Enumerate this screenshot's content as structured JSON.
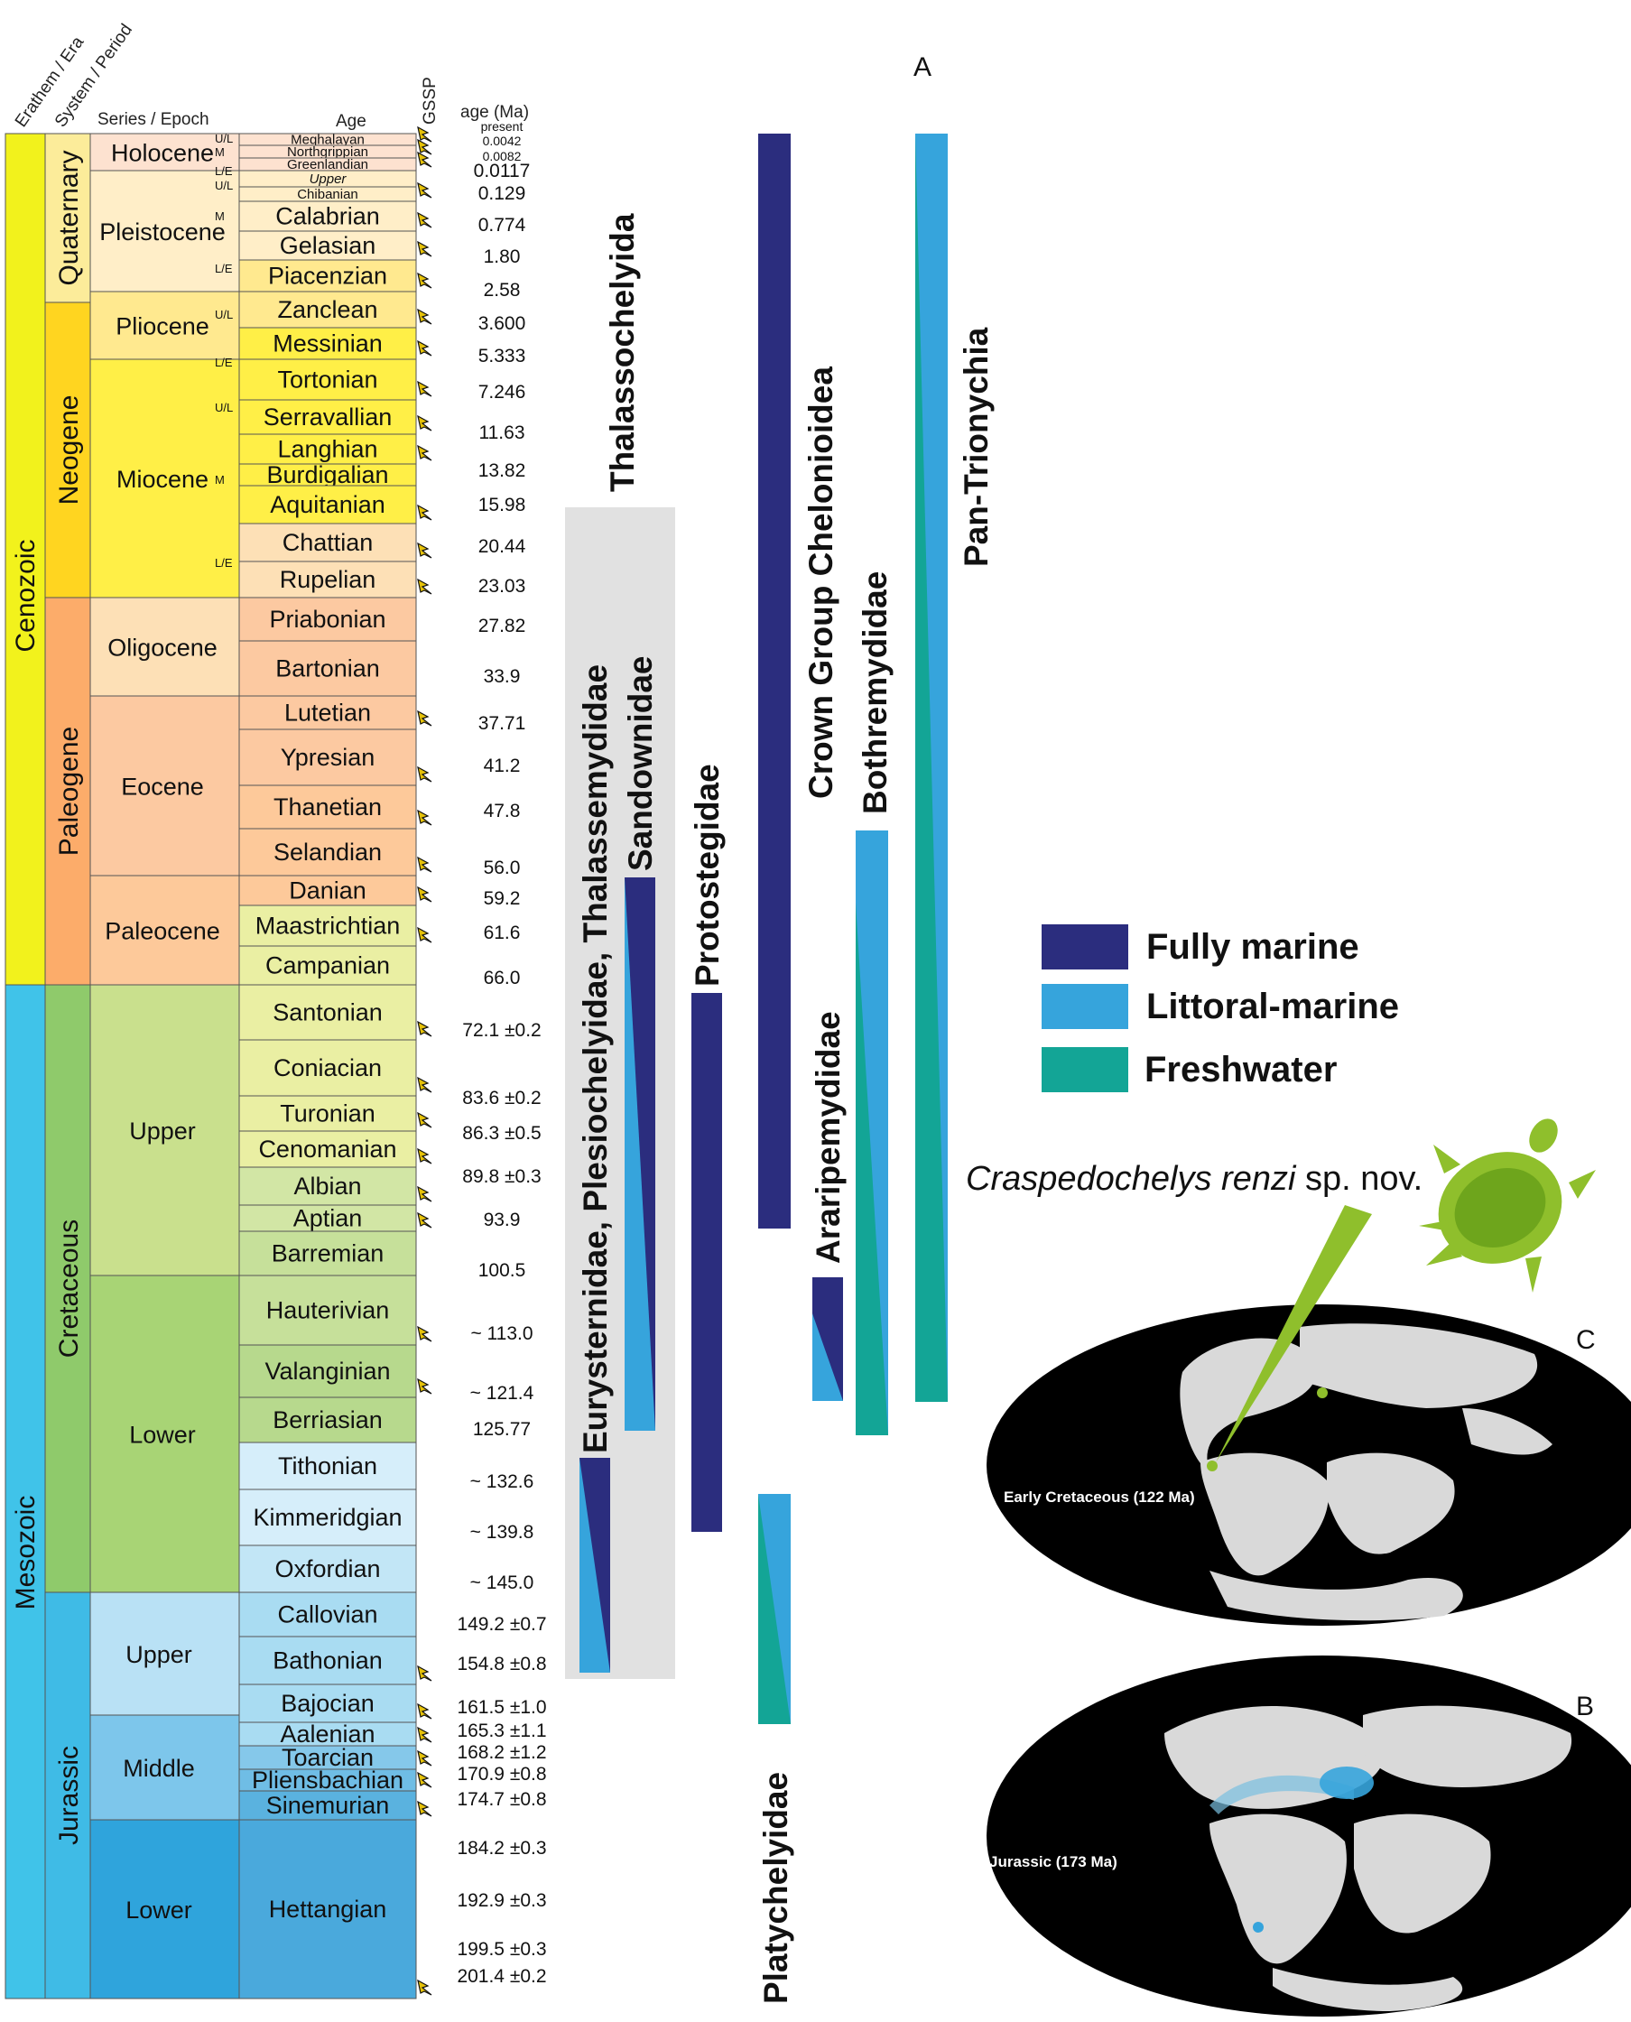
{
  "headers": {
    "erathem": "Erathem / Era",
    "system": "System / Period",
    "series": "Series / Epoch",
    "age": "Age",
    "gssp": "GSSP",
    "age_ma": "age (Ma)"
  },
  "eras": [
    "Cenozoic",
    "Mesozoic"
  ],
  "periods": [
    "Quaternary",
    "Neogene",
    "Paleogene",
    "Cretaceous",
    "Jurassic"
  ],
  "epochs": [
    "Holocene",
    "Pleistocene",
    "Pliocene",
    "Miocene",
    "Oligocene",
    "Eocene",
    "Paleocene",
    "Upper",
    "Lower",
    "Upper",
    "Middle",
    "Lower"
  ],
  "subdivisions": [
    "U/L",
    "M",
    "L/E",
    "U/L",
    "M",
    "L/E",
    "U/L",
    "L/E",
    "U/L",
    "M",
    "L/E"
  ],
  "ages": [
    "Meghalayan",
    "Northgrippian",
    "Greenlandian",
    "Upper",
    "Chibanian",
    "Calabrian",
    "Gelasian",
    "Piacenzian",
    "Zanclean",
    "Messinian",
    "Tortonian",
    "Serravallian",
    "Langhian",
    "Burdigalian",
    "Aquitanian",
    "Chattian",
    "Rupelian",
    "Priabonian",
    "Bartonian",
    "Lutetian",
    "Ypresian",
    "Thanetian",
    "Selandian",
    "Danian",
    "Maastrichtian",
    "Campanian",
    "Santonian",
    "Coniacian",
    "Turonian",
    "Cenomanian",
    "Albian",
    "Aptian",
    "Barremian",
    "Hauterivian",
    "Valanginian",
    "Berriasian",
    "Tithonian",
    "Kimmeridgian",
    "Oxfordian",
    "Callovian",
    "Bathonian",
    "Bajocian",
    "Aalenian",
    "Toarcian",
    "Pliensbachian",
    "Sinemurian",
    "Hettangian"
  ],
  "boundaries_ma": [
    "present",
    "0.0042",
    "0.0082",
    "0.0117",
    "0.129",
    "0.774",
    "1.80",
    "2.58",
    "3.600",
    "5.333",
    "7.246",
    "11.63",
    "13.82",
    "15.98",
    "20.44",
    "23.03",
    "27.82",
    "33.9",
    "37.71",
    "41.2",
    "47.8",
    "56.0",
    "59.2",
    "61.6",
    "66.0",
    "72.1 ±0.2",
    "83.6 ±0.2",
    "86.3 ±0.5",
    "89.8 ±0.3",
    "93.9",
    "100.5",
    "~ 113.0",
    "~ 121.4",
    "125.77",
    "~ 132.6",
    "~ 139.8",
    "~ 145.0",
    "149.2 ±0.7",
    "154.8 ±0.8",
    "161.5 ±1.0",
    "165.3 ±1.1",
    "168.2 ±1.2",
    "170.9 ±0.8",
    "174.7 ±0.8",
    "184.2 ±0.3",
    "192.9 ±0.3",
    "199.5 ±0.3",
    "201.4 ±0.2"
  ],
  "clades": [
    {
      "name": "Thalassochelyida",
      "habitat": "fully-marine"
    },
    {
      "name": "Eurysternidae, Plesiochelyidae, Thalassemydidae",
      "habitat": "littoral-to-marine"
    },
    {
      "name": "Sandownidae",
      "habitat": "marine-to-littoral"
    },
    {
      "name": "Protostegidae",
      "habitat": "fully-marine"
    },
    {
      "name": "Platychelyidae",
      "habitat": "littoral-to-freshwater"
    },
    {
      "name": "Crown Group Chelonioidea",
      "habitat": "fully-marine"
    },
    {
      "name": "Araripemydidae",
      "habitat": "littoral-to-marine"
    },
    {
      "name": "Bothremydidae",
      "habitat": "littoral-to-freshwater"
    },
    {
      "name": "Pan-Trionychia",
      "habitat": "littoral-to-freshwater"
    }
  ],
  "legend": [
    {
      "label": "Fully marine",
      "color": "#2b2d7e"
    },
    {
      "label": "Littoral-marine",
      "color": "#36a4dc"
    },
    {
      "label": "Freshwater",
      "color": "#13a596"
    }
  ],
  "panels": {
    "a": "A",
    "b": "B",
    "c": "C"
  },
  "maps": {
    "early_cretaceous": "Early Cretaceous (122 Ma)",
    "jurassic": "Jurassic (173 Ma)"
  },
  "species": {
    "genus_species": "Craspedochelys renzi",
    "suffix": " sp. nov."
  },
  "colors": {
    "quaternary": "#f9f97f",
    "neogene": "#ffe619",
    "paleogene": "#fd9a52",
    "cretaceous": "#7fc64e",
    "jurassic": "#34b2c9",
    "cenozoic": "#f2f91d",
    "mesozoic": "#67c5ca",
    "gray_band": "#e1e1e1",
    "green_turtle": "#8fbf2c"
  }
}
